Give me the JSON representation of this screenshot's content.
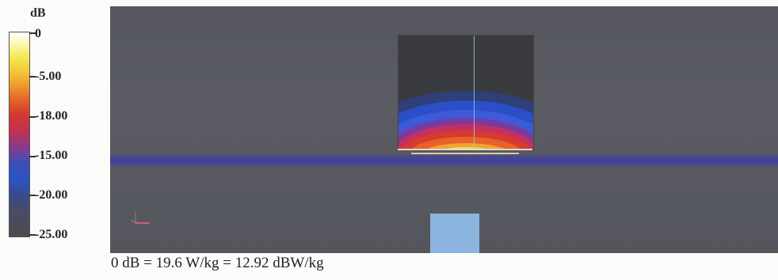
{
  "legend": {
    "unit": "dB",
    "ticks": [
      "0",
      "-5.00",
      "-18.00",
      "-15.00",
      "-20.00",
      "-25.00"
    ]
  },
  "caption": "0 dB = 19.6 W/kg = 12.92 dBW/kg",
  "colors": {
    "background_field": "#56575e",
    "band": "#3c3eaa",
    "box_background": "#3a3b3f",
    "block": "#8bb5de",
    "divider": "#7fe0d8"
  }
}
